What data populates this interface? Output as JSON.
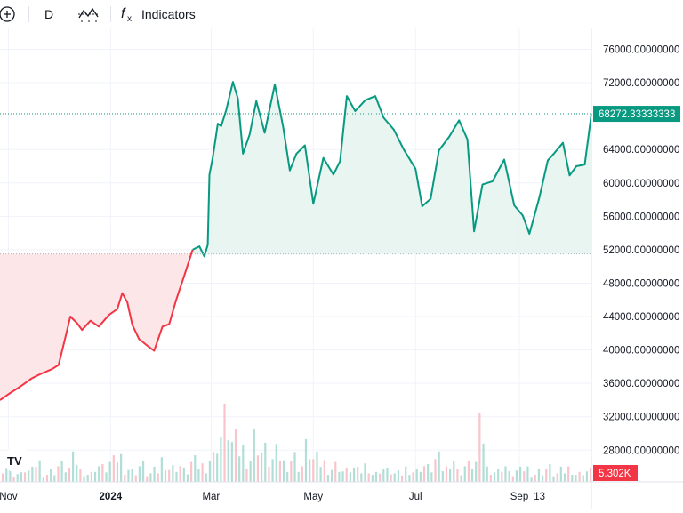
{
  "toolbar": {
    "interval_label": "D",
    "indicators_label": "Indicators",
    "icons": [
      "add-symbol-icon",
      "bar-style-icon",
      "indicators-fx-icon"
    ]
  },
  "colors": {
    "up": "#089981",
    "down": "#f23645",
    "up_fill": "#e6f4ef",
    "down_fill": "#fde3e5",
    "grid": "#f0f3fa",
    "badge": "#089981",
    "volume_badge": "#f23645"
  },
  "chart_data": {
    "type": "area",
    "title": "",
    "xlabel": "",
    "ylabel": "",
    "baseline": 51500,
    "ylim": [
      24200,
      78500
    ],
    "y_ticks": [
      76000,
      72000,
      68000,
      64000,
      60000,
      56000,
      52000,
      48000,
      44000,
      40000,
      36000,
      32000,
      28000
    ],
    "y_tick_labels": [
      "76000.00000000",
      "72000.00000000",
      "68000.00000000",
      "64000.00000000",
      "60000.00000000",
      "56000.00000000",
      "52000.00000000",
      "48000.00000000",
      "44000.00000000",
      "40000.00000000",
      "36000.00000000",
      "32000.00000000",
      "28000.00000000"
    ],
    "x_ticks": [
      {
        "label": "Nov",
        "x": "2023-11-01",
        "bold": false
      },
      {
        "label": "2024",
        "x": "2024-01-01",
        "bold": true
      },
      {
        "label": "Mar",
        "x": "2024-03-01",
        "bold": false
      },
      {
        "label": "May",
        "x": "2024-05-01",
        "bold": false
      },
      {
        "label": "Jul",
        "x": "2024-07-01",
        "bold": false
      },
      {
        "label": "Sep",
        "x": "2024-09-01",
        "bold": false
      },
      {
        "label": "13",
        "x": "2024-09-13",
        "bold": false
      }
    ],
    "last_price_label": "68272.33333333",
    "last_price": 68272.33,
    "volume_label": "5.302K",
    "series": [
      {
        "x": [
          "2023-10-27",
          "2023-11-01",
          "2023-11-08",
          "2023-11-15",
          "2023-11-20",
          "2023-11-27",
          "2023-12-01",
          "2023-12-05",
          "2023-12-08",
          "2023-12-12",
          "2023-12-15",
          "2023-12-20",
          "2023-12-25",
          "2023-12-31",
          "2024-01-05",
          "2024-01-08",
          "2024-01-11",
          "2024-01-14",
          "2024-01-18",
          "2024-01-23",
          "2024-01-27",
          "2024-02-01",
          "2024-02-05",
          "2024-02-09",
          "2024-02-14",
          "2024-02-19",
          "2024-02-23",
          "2024-02-26",
          "2024-02-28",
          "2024-02-29",
          "2024-03-02",
          "2024-03-05",
          "2024-03-07",
          "2024-03-10",
          "2024-03-14",
          "2024-03-17",
          "2024-03-20",
          "2024-03-24",
          "2024-03-28",
          "2024-04-02",
          "2024-04-08",
          "2024-04-13",
          "2024-04-17",
          "2024-04-21",
          "2024-04-26",
          "2024-05-01",
          "2024-05-07",
          "2024-05-13",
          "2024-05-17",
          "2024-05-21",
          "2024-05-26",
          "2024-06-01",
          "2024-06-07",
          "2024-06-12",
          "2024-06-18",
          "2024-06-24",
          "2024-07-01",
          "2024-07-05",
          "2024-07-10",
          "2024-07-15",
          "2024-07-21",
          "2024-07-27",
          "2024-08-01",
          "2024-08-05",
          "2024-08-10",
          "2024-08-16",
          "2024-08-23",
          "2024-08-29",
          "2024-09-03",
          "2024-09-07",
          "2024-09-13",
          "2024-09-18",
          "2024-09-22",
          "2024-09-27",
          "2024-10-01",
          "2024-10-05",
          "2024-10-10",
          "2024-10-14"
        ],
        "values": [
          34000,
          34700,
          35600,
          36600,
          37100,
          37700,
          38200,
          41500,
          44000,
          43200,
          42400,
          43500,
          42800,
          44200,
          44900,
          46800,
          45700,
          43000,
          41300,
          40500,
          39900,
          42800,
          43100,
          45900,
          48900,
          52000,
          52400,
          51200,
          52600,
          61000,
          63000,
          67100,
          66800,
          68700,
          72100,
          70100,
          63500,
          65800,
          69800,
          66000,
          71800,
          66700,
          61500,
          63500,
          64500,
          57500,
          63000,
          61000,
          62600,
          70400,
          68600,
          69900,
          70400,
          67800,
          66400,
          64000,
          61700,
          57200,
          58100,
          63900,
          65500,
          67500,
          65200,
          54200,
          59800,
          60200,
          62800,
          57300,
          56100,
          53900,
          58300,
          62700,
          63600,
          64800,
          60900,
          62000,
          62200,
          68272
        ]
      }
    ],
    "volume": [
      6,
      3,
      5,
      4,
      7,
      3,
      4,
      6,
      5,
      8,
      4,
      3,
      6,
      5,
      7,
      9,
      5,
      4,
      6,
      3,
      4,
      8,
      5,
      6,
      4,
      7,
      6,
      9,
      17,
      22,
      14,
      12,
      9,
      16,
      11,
      8,
      10,
      7,
      9,
      6,
      12,
      8,
      7,
      5,
      6,
      4,
      5,
      4,
      6,
      3,
      5,
      4,
      3,
      5,
      4,
      6,
      5,
      8,
      5,
      9,
      4,
      6,
      7,
      18,
      5,
      4,
      6,
      3,
      4,
      5,
      3,
      4,
      5,
      3,
      4,
      5,
      3,
      4
    ]
  }
}
